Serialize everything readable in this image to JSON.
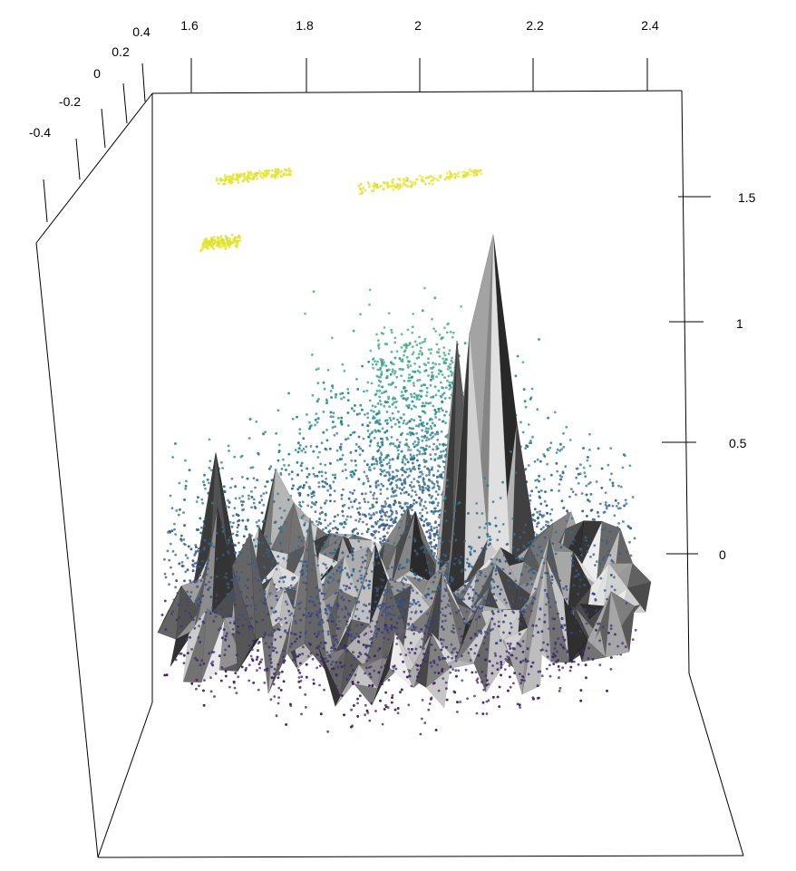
{
  "chart_data": {
    "type": "scatter",
    "x_ticks": [
      "1.6",
      "1.8",
      "2",
      "2.2",
      "2.4"
    ],
    "y_ticks": [
      "-0.4",
      "-0.2",
      "0",
      "0.2",
      "0.4"
    ],
    "z_ticks": [
      "0",
      "0.5",
      "1",
      "1.5"
    ],
    "xlim": [
      1.55,
      2.45
    ],
    "ylim": [
      -0.5,
      0.45
    ],
    "zlim": [
      -0.2,
      1.75
    ],
    "colormap": [
      "#440154",
      "#3b528b",
      "#21918c",
      "#5ec962",
      "#fde725"
    ],
    "surface_colors": [
      "#1a1a1a",
      "#6e6e6e",
      "#bdbdbd",
      "#f4f4f4"
    ],
    "grid": false,
    "legend": "none"
  }
}
